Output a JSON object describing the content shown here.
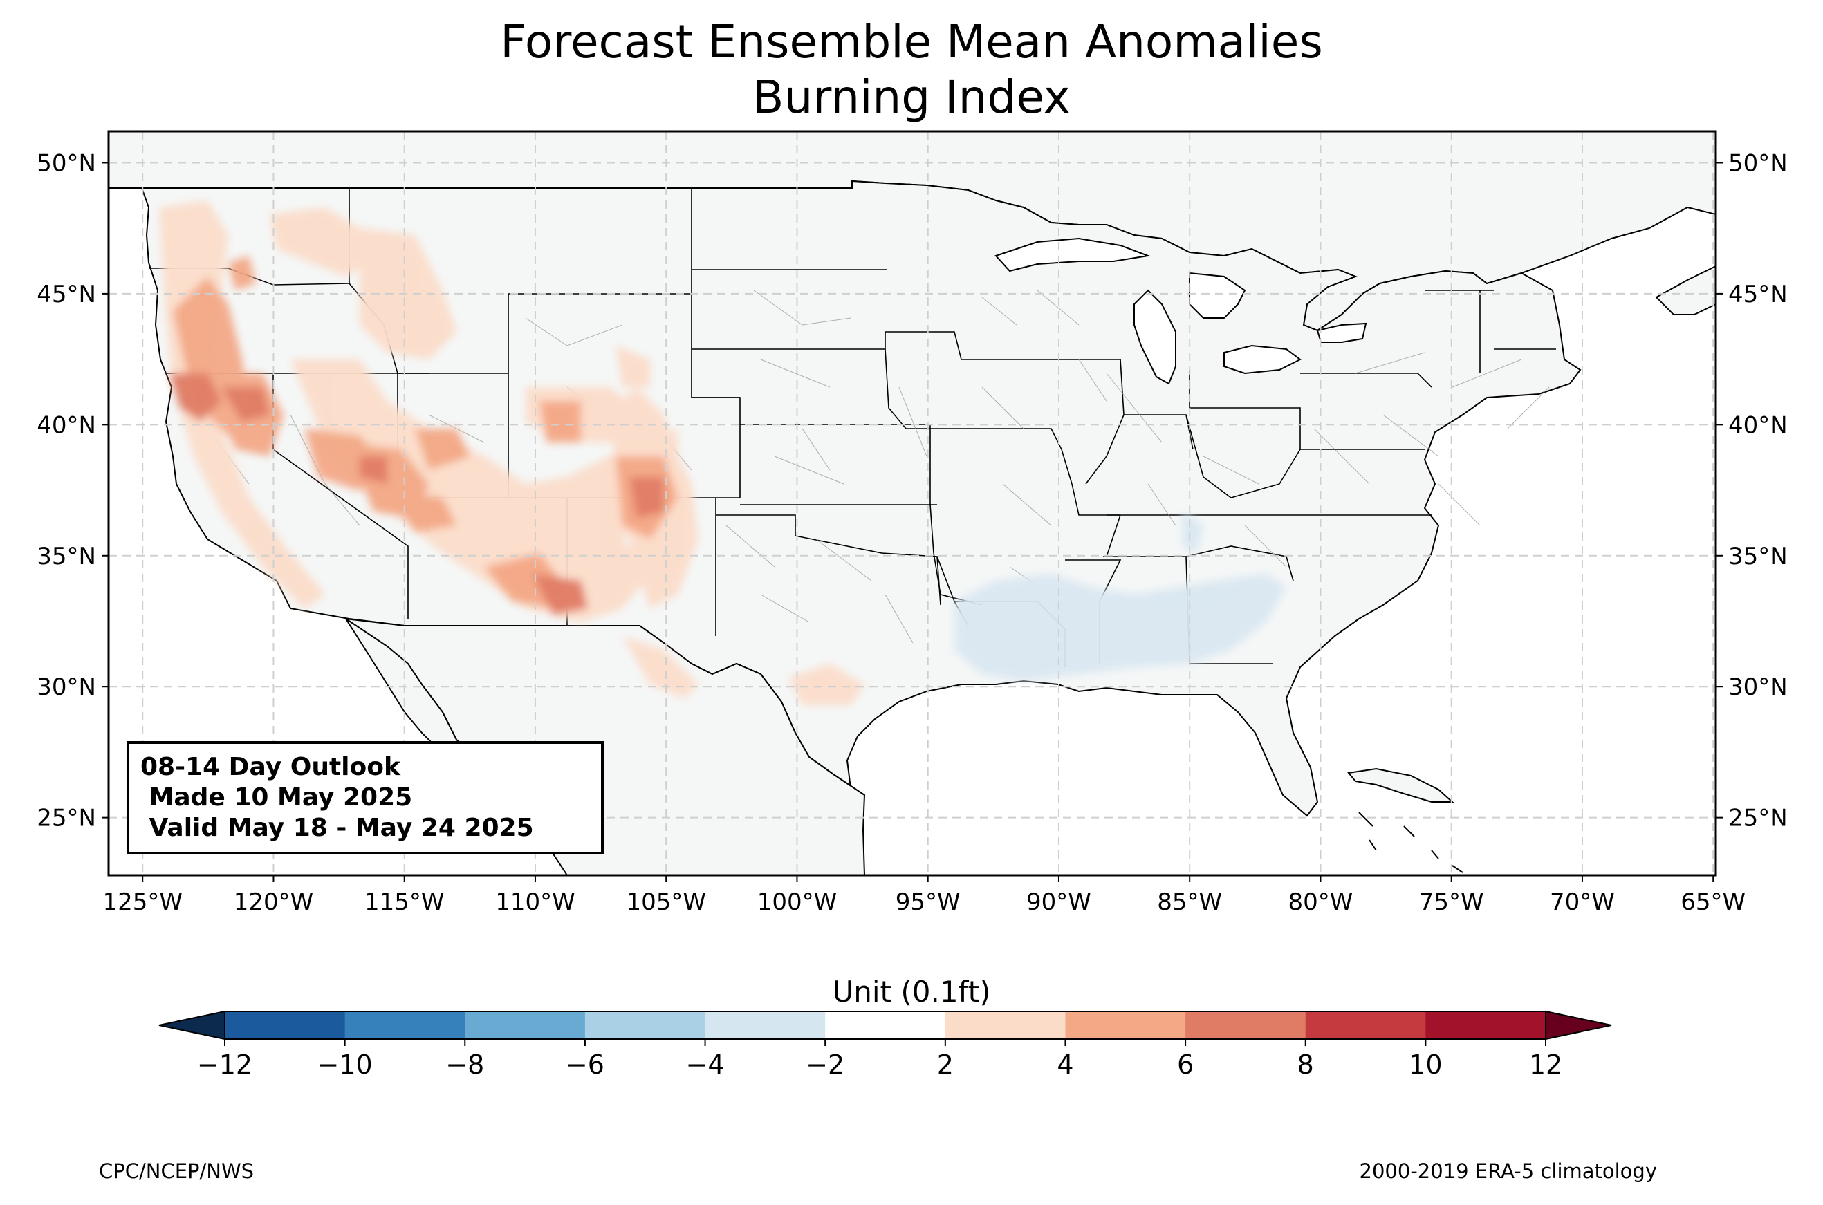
{
  "title": {
    "line1": "Forecast Ensemble Mean Anomalies",
    "line2": "Burning Index"
  },
  "map": {
    "lon_range": [
      -126.3,
      -64.9
    ],
    "lat_range": [
      22.8,
      51.2
    ],
    "lon_ticks": [
      -125,
      -120,
      -115,
      -110,
      -105,
      -100,
      -95,
      -90,
      -85,
      -80,
      -75,
      -70,
      -65
    ],
    "lon_tick_labels": [
      "125°W",
      "120°W",
      "115°W",
      "110°W",
      "105°W",
      "100°W",
      "95°W",
      "90°W",
      "85°W",
      "80°W",
      "75°W",
      "70°W",
      "65°W"
    ],
    "lat_ticks": [
      25,
      30,
      35,
      40,
      45,
      50
    ],
    "lat_tick_labels": [
      "25°N",
      "30°N",
      "35°N",
      "40°N",
      "45°N",
      "50°N"
    ],
    "gridlines": "dashed",
    "land_color": "#f5f7f7",
    "anomaly_regions": [
      {
        "area": "Pacific Northwest / Oregon",
        "anomaly": "2 to 6"
      },
      {
        "area": "Northern California",
        "anomaly": "4 to 8"
      },
      {
        "area": "Nevada / Great Basin",
        "anomaly": "2 to 6"
      },
      {
        "area": "Southern California",
        "anomaly": "2 to 6"
      },
      {
        "area": "Arizona / New Mexico",
        "anomaly": "4 to 8"
      },
      {
        "area": "Southern Colorado / Northern New Mexico",
        "anomaly": "4 to 8"
      },
      {
        "area": "West Texas",
        "anomaly": "2 to 4"
      },
      {
        "area": "Idaho / Montana",
        "anomaly": "2 to 4"
      },
      {
        "area": "Southeast (Louisiana, Mississippi, Alabama, Georgia)",
        "anomaly": "-4 to -2"
      }
    ]
  },
  "outlook_box": {
    "line1": "08-14 Day Outlook",
    "line2": " Made 10 May 2025",
    "line3": " Valid May 18 - May 24 2025"
  },
  "colorbar": {
    "title": "Unit (0.1ft)",
    "levels": [
      -12,
      -10,
      -8,
      -6,
      -4,
      -2,
      2,
      4,
      6,
      8,
      10,
      12
    ],
    "tick_labels": [
      "−12",
      "−10",
      "−8",
      "−6",
      "−4",
      "−2",
      "2",
      "4",
      "6",
      "8",
      "10",
      "12"
    ],
    "colors": [
      "#1c5a9e",
      "#3680bb",
      "#68aad2",
      "#a9d0e4",
      "#d6e6f0",
      "#ffffff",
      "#fbdcc9",
      "#f3a886",
      "#e07c65",
      "#c53a3e",
      "#a2122b"
    ],
    "under_color": "#0b2a4e",
    "over_color": "#67001f"
  },
  "footer": {
    "left": "CPC/NCEP/NWS",
    "right": "2000-2019 ERA-5 climatology"
  }
}
